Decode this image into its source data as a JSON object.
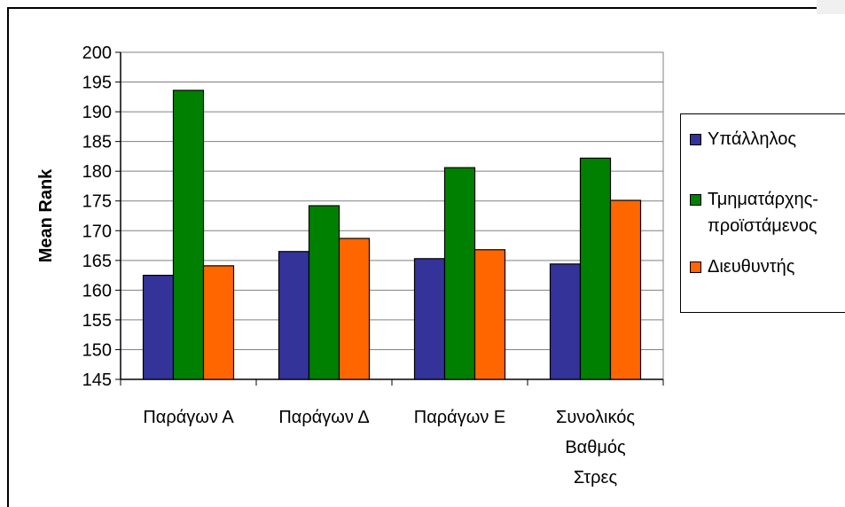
{
  "chart_data": {
    "type": "bar",
    "ylabel": "Mean Rank",
    "xlabel": "",
    "title": "",
    "ylim": [
      145,
      200
    ],
    "ytick_step": 5,
    "grid": "horizontal",
    "legend_position": "right",
    "categories": [
      [
        "Παράγων Α"
      ],
      [
        "Παράγων Δ"
      ],
      [
        "Παράγων Ε"
      ],
      [
        "Συνολικός",
        "Βαθμός",
        "Στρες"
      ]
    ],
    "series": [
      {
        "name": "Υπάλληλος",
        "name_lines": [
          "Υπάλληλος"
        ],
        "color": "#333399",
        "values": [
          162.5,
          166.5,
          165.3,
          164.4
        ]
      },
      {
        "name": "Τμηματάρχης-προϊστάμενος",
        "name_lines": [
          "Τμηματάρχης-",
          "προϊστάμενος"
        ],
        "color": "#008000",
        "values": [
          193.6,
          174.2,
          180.6,
          182.2
        ]
      },
      {
        "name": "Διευθυντής",
        "name_lines": [
          "Διευθυντής"
        ],
        "color": "#ff6600",
        "values": [
          164.1,
          168.7,
          166.8,
          175.1
        ]
      }
    ]
  }
}
